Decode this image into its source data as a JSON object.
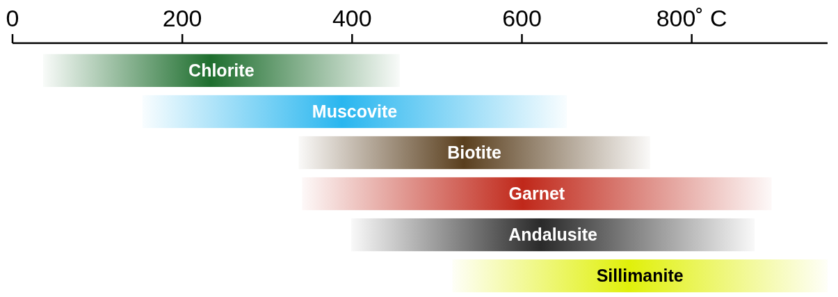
{
  "chart_data": {
    "type": "bar",
    "orientation": "horizontal",
    "categories": [
      "Chlorite",
      "Muscovite",
      "Biotite",
      "Garnet",
      "Andalusite",
      "Sillimanite"
    ],
    "base": [
      36,
      153,
      337,
      341,
      399,
      518
    ],
    "values": [
      420,
      500,
      414,
      553,
      475,
      442
    ],
    "colors": [
      "#1e6e2e",
      "#29b6ef",
      "#5a3f1e",
      "#c0281a",
      "#2a2a2a",
      "#e0f00a"
    ],
    "xlim": [
      0,
      960
    ],
    "xticks": [
      0,
      200,
      400,
      600,
      {
        "value": 800,
        "label": "800˚ C"
      }
    ]
  }
}
